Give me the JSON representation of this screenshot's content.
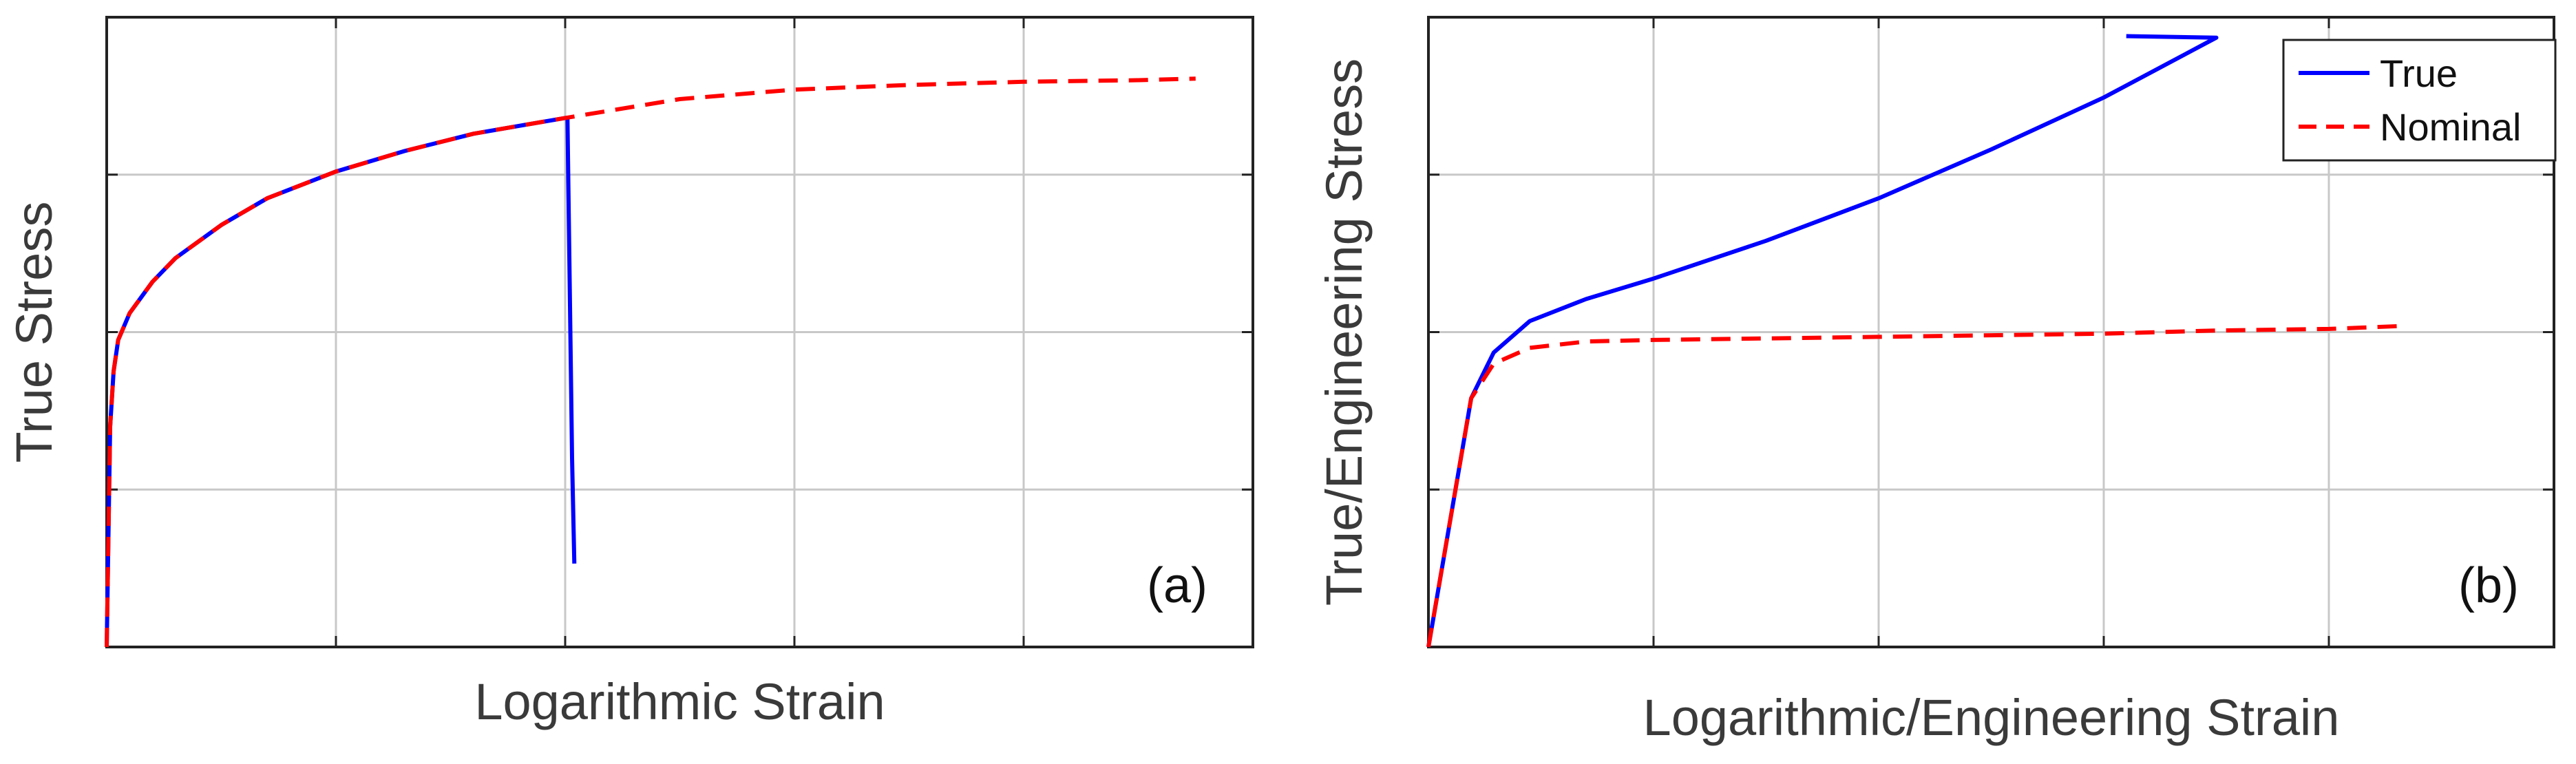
{
  "chart_data": [
    {
      "type": "line",
      "panel_label": "(a)",
      "xlabel": "Logarithmic Strain",
      "ylabel": "True Stress",
      "xlim": [
        0,
        5
      ],
      "ylim": [
        0,
        4
      ],
      "grid": true,
      "tick_labels_shown": false,
      "series": [
        {
          "color": "#0000ff",
          "style": "solid",
          "x": [
            0,
            0.015,
            0.03,
            0.05,
            0.1,
            0.2,
            0.3,
            0.5,
            0.7,
            1.0,
            1.3,
            1.6,
            1.8,
            2.0,
            2.01,
            2.03,
            2.04
          ],
          "y": [
            0,
            1.4,
            1.75,
            1.95,
            2.12,
            2.32,
            2.47,
            2.68,
            2.85,
            3.02,
            3.15,
            3.26,
            3.31,
            3.36,
            3.36,
            1.2,
            0.53
          ]
        },
        {
          "color": "#ff0000",
          "style": "dashed",
          "x": [
            0,
            0.015,
            0.03,
            0.05,
            0.1,
            0.2,
            0.3,
            0.5,
            0.7,
            1.0,
            1.3,
            1.6,
            1.8,
            2.0,
            2.5,
            3.0,
            3.5,
            4.0,
            4.5,
            4.75
          ],
          "y": [
            0,
            1.4,
            1.75,
            1.95,
            2.12,
            2.32,
            2.47,
            2.68,
            2.85,
            3.02,
            3.15,
            3.26,
            3.31,
            3.36,
            3.48,
            3.54,
            3.57,
            3.59,
            3.6,
            3.61
          ]
        }
      ]
    },
    {
      "type": "line",
      "panel_label": "(b)",
      "xlabel": "Logarithmic/Engineering Strain",
      "ylabel": "True/Engineering Stress",
      "xlim": [
        0,
        5
      ],
      "ylim": [
        0,
        4
      ],
      "grid": true,
      "tick_labels_shown": false,
      "legend": {
        "position": "top-right",
        "entries": [
          "True",
          "Nominal"
        ]
      },
      "series": [
        {
          "name": "True",
          "color": "#0000ff",
          "style": "solid",
          "x": [
            0,
            0.19,
            0.29,
            0.45,
            0.7,
            1.0,
            1.5,
            2.0,
            2.5,
            3.0,
            3.5,
            3.1
          ],
          "y": [
            0,
            1.58,
            1.87,
            2.07,
            2.21,
            2.34,
            2.58,
            2.85,
            3.16,
            3.49,
            3.87,
            3.88
          ]
        },
        {
          "name": "Nominal",
          "color": "#ff0000",
          "style": "dashed",
          "x": [
            0,
            0.19,
            0.29,
            0.45,
            0.7,
            1.0,
            1.5,
            2.0,
            2.5,
            3.0,
            3.5,
            4.0,
            4.35
          ],
          "y": [
            0,
            1.58,
            1.8,
            1.9,
            1.94,
            1.95,
            1.96,
            1.97,
            1.98,
            1.99,
            2.01,
            2.02,
            2.04
          ]
        }
      ]
    }
  ]
}
